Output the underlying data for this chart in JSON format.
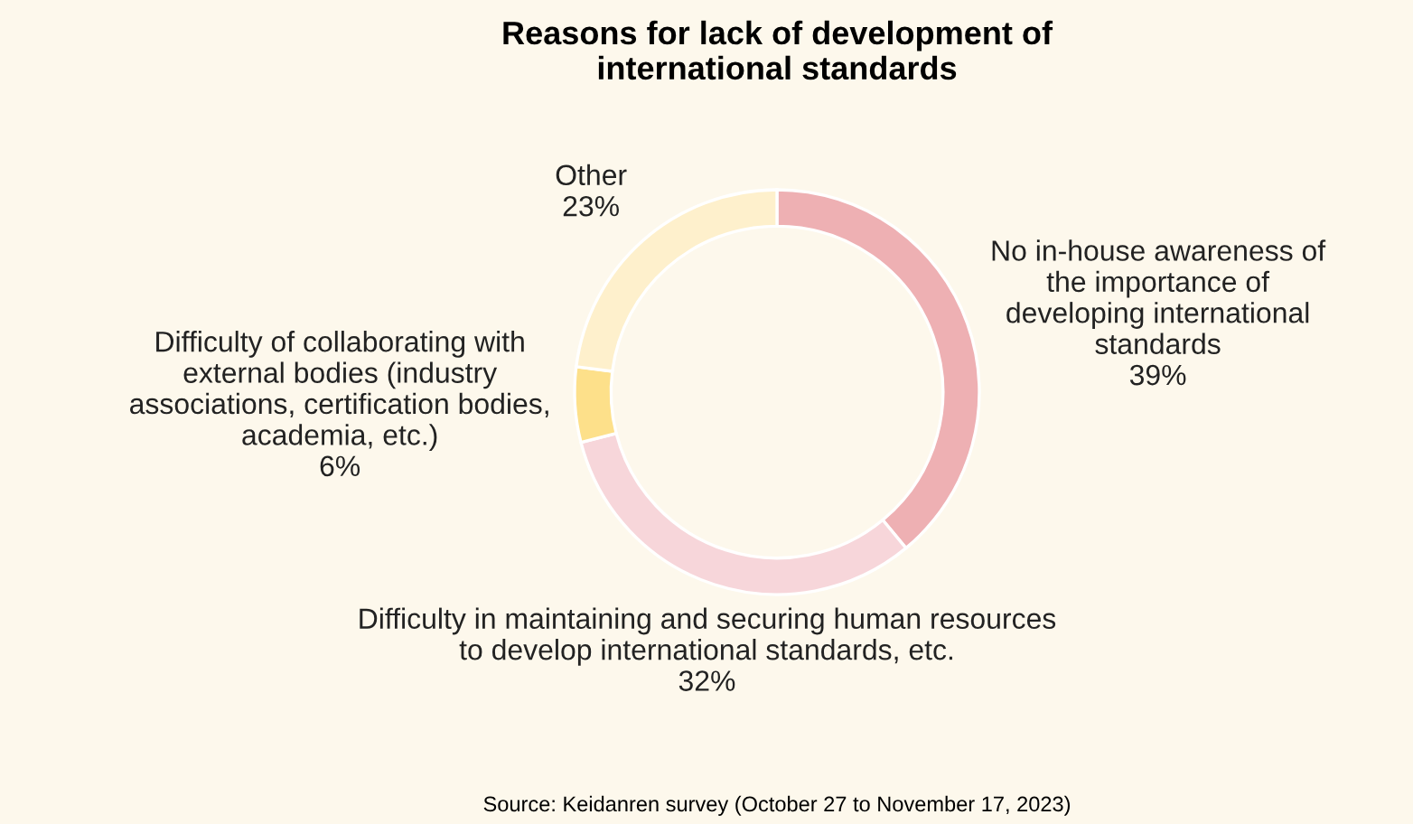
{
  "chart_data": {
    "type": "donut",
    "title": "Reasons for lack of development of\ninternational standards",
    "categories": [
      "No in-house awareness of\nthe importance of\ndeveloping international\nstandards",
      "Difficulty in maintaining and securing human resources\nto develop international standards, etc.",
      "Difficulty of collaborating with\nexternal bodies (industry\nassociations, certification bodies,\nacademia, etc.)",
      "Other"
    ],
    "values": [
      39,
      32,
      6,
      23
    ],
    "colors": [
      "#eeb0b3",
      "#f7d6da",
      "#fde08a",
      "#fef0cc"
    ],
    "value_labels": [
      "39%",
      "32%",
      "6%",
      "23%"
    ],
    "annotations": [
      "Source: Keidanren survey (October 27 to November 17, 2023)"
    ]
  }
}
